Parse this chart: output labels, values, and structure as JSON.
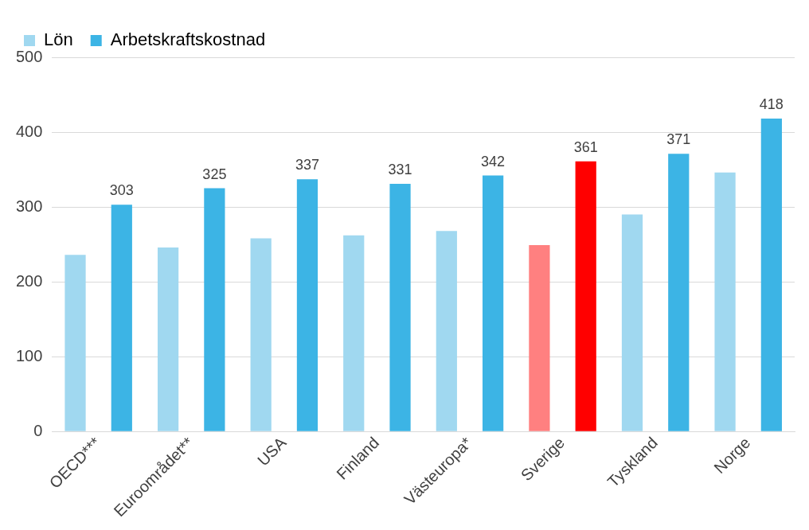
{
  "chart_data": {
    "type": "bar",
    "categories": [
      "OECD***",
      "Euroområdet**",
      "USA",
      "Finland",
      "Västeuropa*",
      "Sverige",
      "Tyskland",
      "Norge"
    ],
    "series": [
      {
        "name": "Lön",
        "color": "#a0d8f0",
        "colors": [
          "#a0d8f0",
          "#a0d8f0",
          "#a0d8f0",
          "#a0d8f0",
          "#a0d8f0",
          "#ff8080",
          "#a0d8f0",
          "#a0d8f0"
        ],
        "values": [
          236,
          246,
          258,
          262,
          268,
          249,
          290,
          346
        ]
      },
      {
        "name": "Arbetskraftskostnad",
        "color": "#3cb4e5",
        "colors": [
          "#3cb4e5",
          "#3cb4e5",
          "#3cb4e5",
          "#3cb4e5",
          "#3cb4e5",
          "#ff0000",
          "#3cb4e5",
          "#3cb4e5"
        ],
        "values": [
          303,
          325,
          337,
          331,
          342,
          361,
          371,
          418
        ],
        "value_labels": [
          "303",
          "325",
          "337",
          "331",
          "342",
          "361",
          "371",
          "418"
        ]
      }
    ],
    "ylim": [
      0,
      500
    ],
    "yticks": [
      0,
      100,
      200,
      300,
      400,
      500
    ],
    "grid": "y",
    "legend": "top left"
  }
}
